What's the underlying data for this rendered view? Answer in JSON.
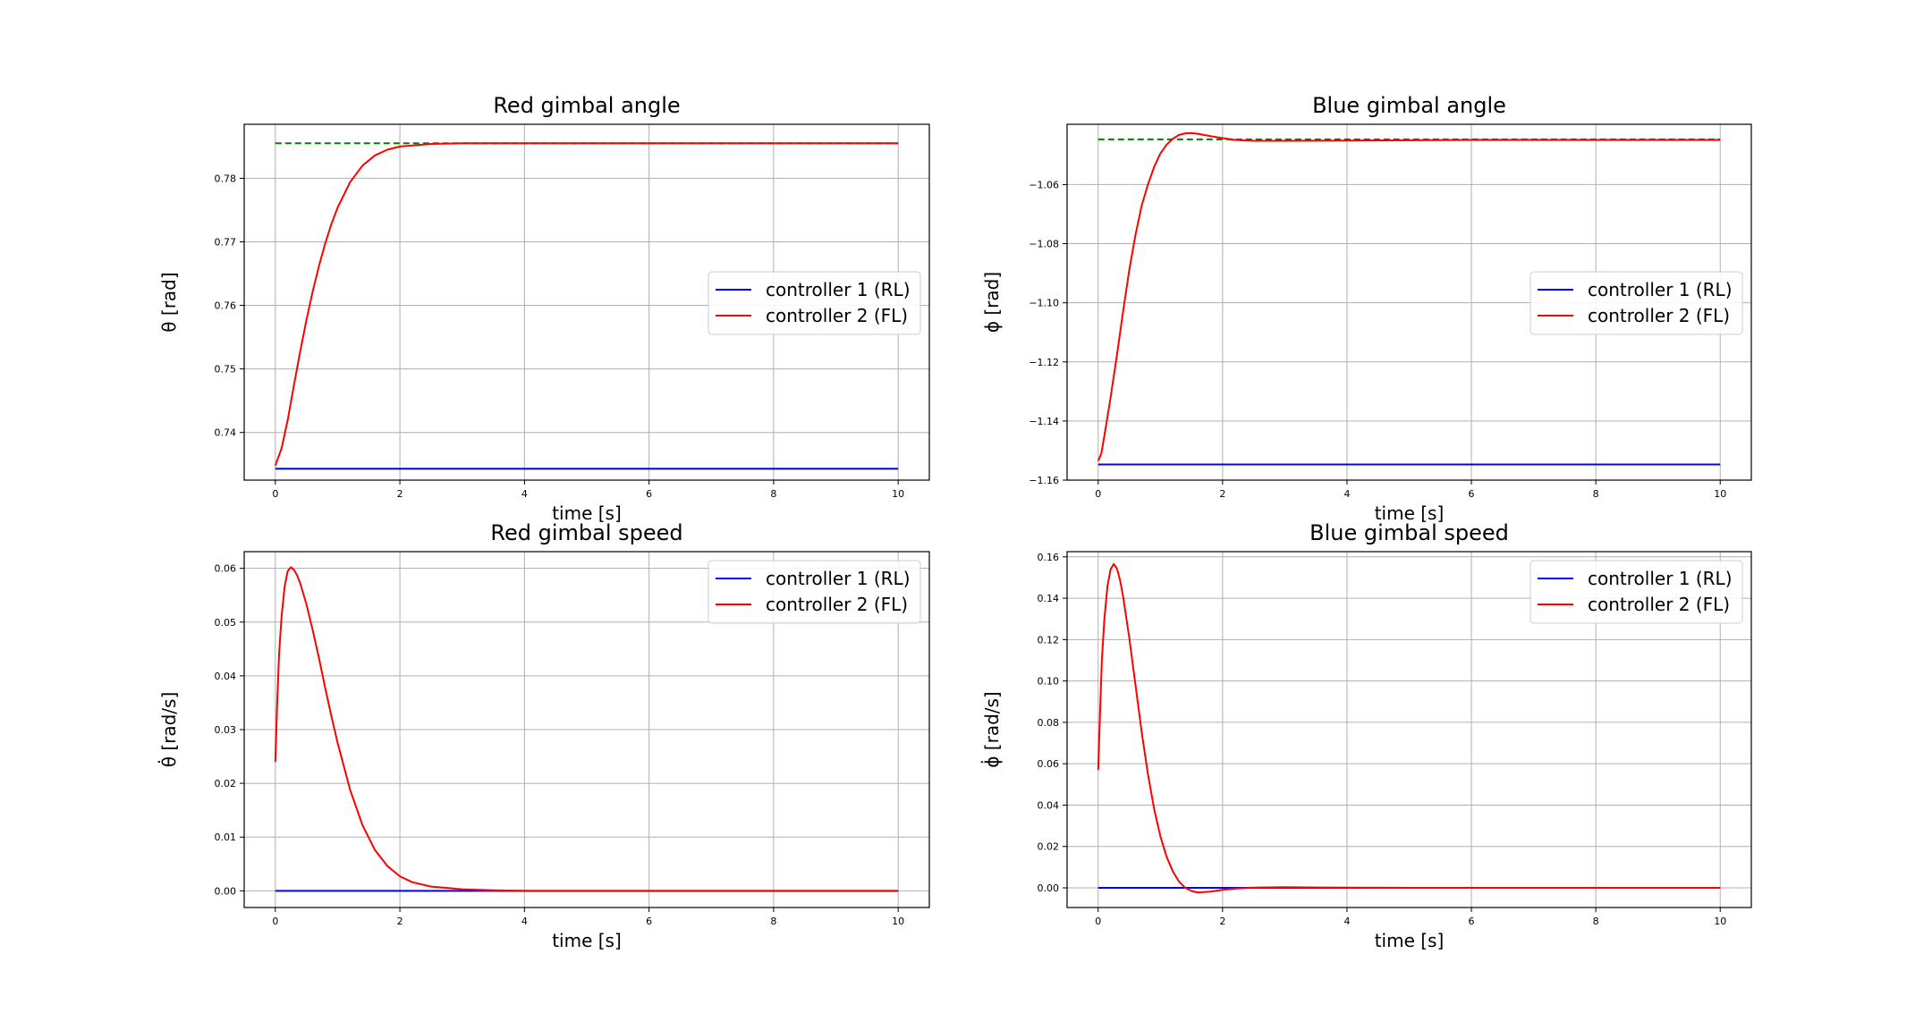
{
  "chart_data": [
    {
      "type": "line",
      "title": "Red gimbal angle",
      "xlabel": "time [s]",
      "ylabel": "θ [rad]",
      "xlim": [
        -0.5,
        10.5
      ],
      "ylim": [
        0.7325,
        0.7885
      ],
      "xticks": [
        0,
        2,
        4,
        6,
        8,
        10
      ],
      "yticks": [
        0.74,
        0.75,
        0.76,
        0.77,
        0.78
      ],
      "ytick_labels": [
        "0.74",
        "0.75",
        "0.76",
        "0.77",
        "0.78"
      ],
      "grid": true,
      "legend_position": "center-right",
      "series": [
        {
          "name": "controller 1 (RL)",
          "color": "#0000ff",
          "x": [
            0,
            10
          ],
          "y": [
            0.7343,
            0.7343
          ]
        },
        {
          "name": "controller 2 (FL)",
          "color": "#ff0000",
          "x": [
            0,
            0.1,
            0.2,
            0.3,
            0.4,
            0.5,
            0.6,
            0.7,
            0.8,
            0.9,
            1.0,
            1.2,
            1.4,
            1.6,
            1.8,
            2.0,
            2.5,
            3.0,
            3.5,
            4.0,
            5.0,
            6.0,
            8.0,
            10.0
          ],
          "y": [
            0.7348,
            0.7375,
            0.742,
            0.7475,
            0.7528,
            0.7577,
            0.7622,
            0.7662,
            0.7697,
            0.7728,
            0.7754,
            0.7794,
            0.782,
            0.7836,
            0.7845,
            0.785,
            0.7854,
            0.7855,
            0.7855,
            0.7855,
            0.7855,
            0.7855,
            0.7855,
            0.7855
          ]
        },
        {
          "name": "",
          "color": "#008000",
          "dashed": true,
          "x": [
            0,
            10
          ],
          "y": [
            0.7855,
            0.7855
          ]
        }
      ]
    },
    {
      "type": "line",
      "title": "Blue gimbal angle",
      "xlabel": "time [s]",
      "ylabel": "ϕ [rad]",
      "xlim": [
        -0.5,
        10.5
      ],
      "ylim": [
        -1.16,
        -1.0396
      ],
      "xticks": [
        0,
        2,
        4,
        6,
        8,
        10
      ],
      "yticks": [
        -1.16,
        -1.14,
        -1.12,
        -1.1,
        -1.08,
        -1.06
      ],
      "ytick_labels": [
        "−1.16",
        "−1.14",
        "−1.12",
        "−1.10",
        "−1.08",
        "−1.06"
      ],
      "grid": true,
      "legend_position": "center-right",
      "series": [
        {
          "name": "controller 1 (RL)",
          "color": "#0000ff",
          "x": [
            0,
            10
          ],
          "y": [
            -1.1547,
            -1.1547
          ]
        },
        {
          "name": "controller 2 (FL)",
          "color": "#ff0000",
          "x": [
            0,
            0.05,
            0.1,
            0.2,
            0.3,
            0.4,
            0.5,
            0.6,
            0.7,
            0.8,
            0.9,
            1.0,
            1.1,
            1.2,
            1.3,
            1.4,
            1.5,
            1.6,
            1.8,
            2.0,
            2.2,
            2.5,
            3.0,
            4.0,
            5.0,
            6.0,
            8.0,
            10.0
          ],
          "y": [
            -1.1535,
            -1.151,
            -1.145,
            -1.132,
            -1.118,
            -1.103,
            -1.089,
            -1.077,
            -1.067,
            -1.06,
            -1.054,
            -1.0495,
            -1.0465,
            -1.0445,
            -1.0432,
            -1.0427,
            -1.0426,
            -1.0428,
            -1.0436,
            -1.0443,
            -1.0449,
            -1.0452,
            -1.0452,
            -1.0451,
            -1.045,
            -1.0449,
            -1.0449,
            -1.0449
          ]
        },
        {
          "name": "",
          "color": "#008000",
          "dashed": true,
          "x": [
            0,
            10
          ],
          "y": [
            -1.0447,
            -1.0447
          ]
        }
      ]
    },
    {
      "type": "line",
      "title": "Red gimbal speed",
      "xlabel": "time [s]",
      "ylabel": "θ̇ [rad/s]",
      "xlim": [
        -0.5,
        10.5
      ],
      "ylim": [
        -0.0031,
        0.0631
      ],
      "xticks": [
        0,
        2,
        4,
        6,
        8,
        10
      ],
      "yticks": [
        0.0,
        0.01,
        0.02,
        0.03,
        0.04,
        0.05,
        0.06
      ],
      "ytick_labels": [
        "0.00",
        "0.01",
        "0.02",
        "0.03",
        "0.04",
        "0.05",
        "0.06"
      ],
      "grid": true,
      "legend_position": "top-right",
      "series": [
        {
          "name": "controller 1 (RL)",
          "color": "#0000ff",
          "x": [
            0,
            10
          ],
          "y": [
            0.0,
            0.0
          ]
        },
        {
          "name": "controller 2 (FL)",
          "color": "#ff0000",
          "x": [
            0,
            0.03,
            0.06,
            0.1,
            0.15,
            0.2,
            0.25,
            0.3,
            0.35,
            0.4,
            0.5,
            0.6,
            0.7,
            0.8,
            0.9,
            1.0,
            1.2,
            1.4,
            1.6,
            1.8,
            2.0,
            2.2,
            2.5,
            3.0,
            3.5,
            4.0,
            5.0,
            6.0,
            8.0,
            10.0
          ],
          "y": [
            0.024,
            0.035,
            0.044,
            0.051,
            0.0567,
            0.0595,
            0.0602,
            0.0597,
            0.0587,
            0.0572,
            0.0533,
            0.0485,
            0.0433,
            0.0378,
            0.0325,
            0.0275,
            0.0188,
            0.0122,
            0.0076,
            0.0046,
            0.0027,
            0.0016,
            0.0008,
            0.0003,
            0.0001,
            0.0,
            0.0,
            0.0,
            0.0,
            0.0
          ]
        }
      ]
    },
    {
      "type": "line",
      "title": "Blue gimbal speed",
      "xlabel": "time [s]",
      "ylabel": "ϕ̇ [rad/s]",
      "xlim": [
        -0.5,
        10.5
      ],
      "ylim": [
        -0.0095,
        0.1625
      ],
      "xticks": [
        0,
        2,
        4,
        6,
        8,
        10
      ],
      "yticks": [
        0.0,
        0.02,
        0.04,
        0.06,
        0.08,
        0.1,
        0.12,
        0.14,
        0.16
      ],
      "ytick_labels": [
        "0.00",
        "0.02",
        "0.04",
        "0.06",
        "0.08",
        "0.10",
        "0.12",
        "0.14",
        "0.16"
      ],
      "grid": true,
      "legend_position": "top-right",
      "series": [
        {
          "name": "controller 1 (RL)",
          "color": "#0000ff",
          "x": [
            0,
            10
          ],
          "y": [
            0.0,
            0.0
          ]
        },
        {
          "name": "controller 2 (FL)",
          "color": "#ff0000",
          "x": [
            0,
            0.03,
            0.06,
            0.1,
            0.15,
            0.2,
            0.25,
            0.3,
            0.35,
            0.4,
            0.5,
            0.6,
            0.7,
            0.8,
            0.9,
            1.0,
            1.1,
            1.2,
            1.3,
            1.4,
            1.5,
            1.6,
            1.8,
            2.0,
            2.2,
            2.5,
            3.0,
            3.5,
            4.0,
            5.0,
            6.0,
            8.0,
            10.0
          ],
          "y": [
            0.057,
            0.085,
            0.11,
            0.13,
            0.146,
            0.154,
            0.1565,
            0.1545,
            0.149,
            0.141,
            0.121,
            0.098,
            0.075,
            0.055,
            0.038,
            0.025,
            0.015,
            0.008,
            0.003,
            0.0,
            -0.0015,
            -0.0022,
            -0.0018,
            -0.001,
            -0.0004,
            0.0001,
            0.0003,
            0.0002,
            0.0001,
            0.0,
            0.0,
            0.0,
            0.0
          ]
        }
      ]
    }
  ]
}
